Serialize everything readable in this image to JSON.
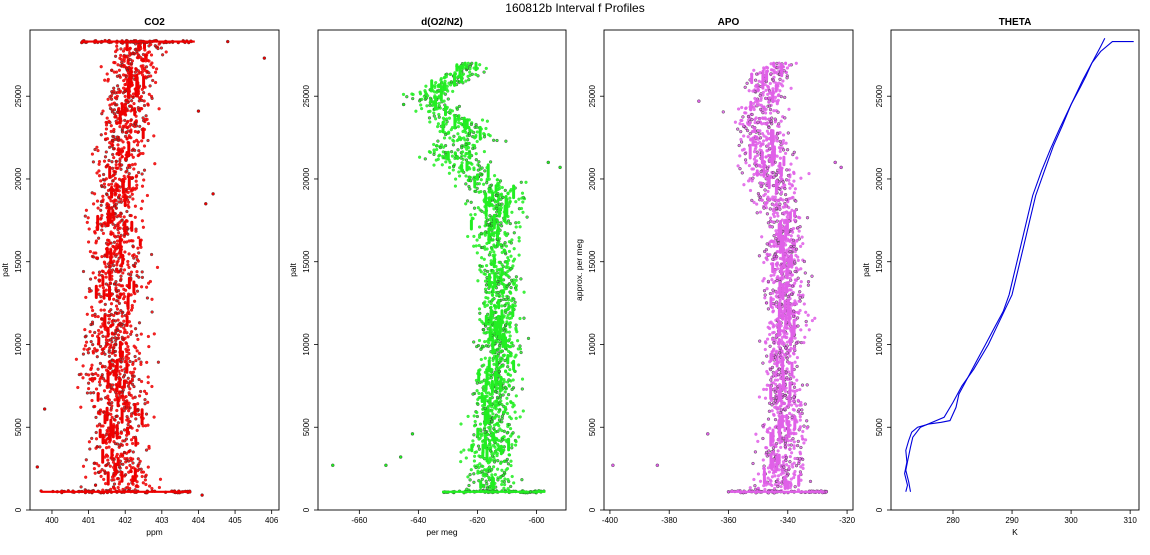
{
  "figure": {
    "title": "160812b   Interval f Profiles"
  },
  "chart_data": [
    {
      "type": "scatter",
      "title": "CO2",
      "xlabel": "ppm",
      "ylabel": "palt",
      "xlim": [
        399.4,
        406.2
      ],
      "ylim": [
        0,
        29000
      ],
      "xticks": [
        400,
        401,
        402,
        403,
        404,
        405,
        406
      ],
      "yticks": [
        0,
        5000,
        10000,
        15000,
        20000,
        25000
      ],
      "color": "#ee0000",
      "grid": false,
      "profile": {
        "y": [
          1100,
          3000,
          6000,
          9000,
          12000,
          15000,
          18000,
          21000,
          24000,
          26000,
          28300
        ],
        "x_center": [
          401.9,
          401.8,
          401.8,
          401.7,
          401.7,
          401.8,
          401.7,
          401.9,
          402.1,
          402.2,
          402.3
        ],
        "x_spread": [
          0.85,
          0.75,
          0.7,
          0.75,
          0.75,
          0.7,
          0.65,
          0.6,
          0.6,
          0.6,
          0.7
        ]
      },
      "layers": [
        {
          "y": 1100,
          "x_min": 399.7,
          "x_max": 403.8
        },
        {
          "y": 28300,
          "x_min": 400.8,
          "x_max": 403.9
        }
      ],
      "outliers": [
        {
          "x": 405.8,
          "y": 27300
        },
        {
          "x": 404.8,
          "y": 28300
        },
        {
          "x": 404.2,
          "y": 18500
        },
        {
          "x": 404.4,
          "y": 19100
        },
        {
          "x": 404.1,
          "y": 900
        },
        {
          "x": 399.6,
          "y": 2600
        },
        {
          "x": 399.8,
          "y": 6100
        },
        {
          "x": 404.0,
          "y": 24100
        }
      ]
    },
    {
      "type": "scatter",
      "title": "d(O2/N2)",
      "xlabel": "per meg",
      "ylabel": "palt",
      "xlim": [
        -674,
        -590
      ],
      "ylim": [
        0,
        29000
      ],
      "xticks": [
        -660,
        -640,
        -620,
        -600
      ],
      "yticks": [
        0,
        5000,
        10000,
        15000,
        20000,
        25000
      ],
      "color": "#22ee22",
      "grid": false,
      "profile": {
        "y": [
          1100,
          3000,
          6000,
          9000,
          12000,
          15000,
          17500,
          19000,
          20500,
          21500,
          22500,
          24000,
          25000,
          26000,
          27000
        ],
        "x_center": [
          -614,
          -616,
          -614,
          -613,
          -612,
          -613,
          -614,
          -613,
          -622,
          -630,
          -622,
          -630,
          -638,
          -627,
          -622
        ],
        "x_spread": [
          9,
          8,
          7,
          6,
          6,
          6,
          7,
          8,
          10,
          9,
          9,
          8,
          7,
          6,
          5
        ]
      },
      "layers": [
        {
          "y": 1100,
          "x_min": -632,
          "x_max": -597
        }
      ],
      "outliers": [
        {
          "x": -669,
          "y": 2700
        },
        {
          "x": -651,
          "y": 2700
        },
        {
          "x": -646,
          "y": 3200
        },
        {
          "x": -642,
          "y": 4600
        },
        {
          "x": -592,
          "y": 20700
        },
        {
          "x": -596,
          "y": 21000
        },
        {
          "x": -645,
          "y": 24500
        },
        {
          "x": -602,
          "y": 1100
        }
      ]
    },
    {
      "type": "scatter",
      "title": "APO",
      "xlabel": "",
      "ylabel": "approx. per meg",
      "xlim": [
        -402,
        -318
      ],
      "ylim": [
        0,
        29000
      ],
      "xticks": [
        -400,
        -380,
        -360,
        -340,
        -320
      ],
      "yticks": [
        0,
        5000,
        10000,
        15000,
        20000,
        25000
      ],
      "color": "#e060e8",
      "grid": false,
      "profile": {
        "y": [
          1100,
          3000,
          6000,
          9000,
          12000,
          15000,
          18000,
          21000,
          24000,
          26000,
          27000
        ],
        "x_center": [
          -343,
          -342,
          -341,
          -342,
          -340,
          -341,
          -342,
          -347,
          -350,
          -347,
          -343
        ],
        "x_spread": [
          8,
          7,
          6,
          6,
          6,
          6,
          7,
          8,
          9,
          8,
          5
        ]
      },
      "layers": [
        {
          "y": 1100,
          "x_min": -360,
          "x_max": -327
        }
      ],
      "outliers": [
        {
          "x": -399,
          "y": 2700
        },
        {
          "x": -384,
          "y": 2700
        },
        {
          "x": -367,
          "y": 4600
        },
        {
          "x": -322,
          "y": 20700
        },
        {
          "x": -324,
          "y": 21000
        },
        {
          "x": -370,
          "y": 24700
        },
        {
          "x": -360,
          "y": 1100
        },
        {
          "x": -327,
          "y": 1100
        }
      ]
    },
    {
      "type": "line",
      "title": "THETA",
      "xlabel": "K",
      "ylabel": "palt",
      "xlim": [
        269.5,
        311.5
      ],
      "ylim": [
        0,
        29000
      ],
      "xticks": [
        280,
        290,
        300,
        310
      ],
      "yticks": [
        0,
        5000,
        10000,
        15000,
        20000,
        25000
      ],
      "color": "#0000dd",
      "grid": false,
      "series": [
        {
          "x": [
            272.0,
            272.3,
            271.8,
            272.2,
            272.0,
            272.5,
            273.0,
            274.0,
            276.0,
            278.0,
            279.5,
            280.5,
            281.0,
            282.5,
            284.0,
            285.5,
            287.0,
            288.5,
            289.5,
            290.5,
            291.5,
            292.5,
            293.5,
            295.0,
            296.5,
            298.0,
            300.0,
            302.0,
            303.5,
            305.0,
            305.7
          ],
          "y": [
            1100,
            1500,
            2200,
            2900,
            3600,
            4200,
            4700,
            5000,
            5200,
            5300,
            5400,
            6200,
            7000,
            8000,
            9000,
            10000,
            11000,
            12000,
            13000,
            14500,
            16000,
            17500,
            19000,
            20500,
            21800,
            23000,
            24500,
            26000,
            27000,
            28000,
            28500
          ]
        },
        {
          "x": [
            272.8,
            272.5,
            272.0,
            272.4,
            272.8,
            273.2,
            274.5,
            276.5,
            278.5,
            280.0,
            281.5,
            283.5,
            286.0,
            288.0,
            290.0,
            291.0,
            292.0,
            293.0,
            294.0,
            295.5,
            297.0,
            298.5,
            300.0,
            301.5,
            302.5,
            303.5,
            305.0,
            307.0,
            309.0,
            310.6
          ],
          "y": [
            1100,
            1700,
            2400,
            3100,
            3800,
            4400,
            5000,
            5300,
            5600,
            6500,
            7500,
            8500,
            10000,
            11500,
            13000,
            14500,
            16000,
            17500,
            19000,
            20500,
            22000,
            23200,
            24500,
            25500,
            26200,
            27000,
            27700,
            28300,
            28300,
            28300
          ]
        }
      ]
    }
  ]
}
